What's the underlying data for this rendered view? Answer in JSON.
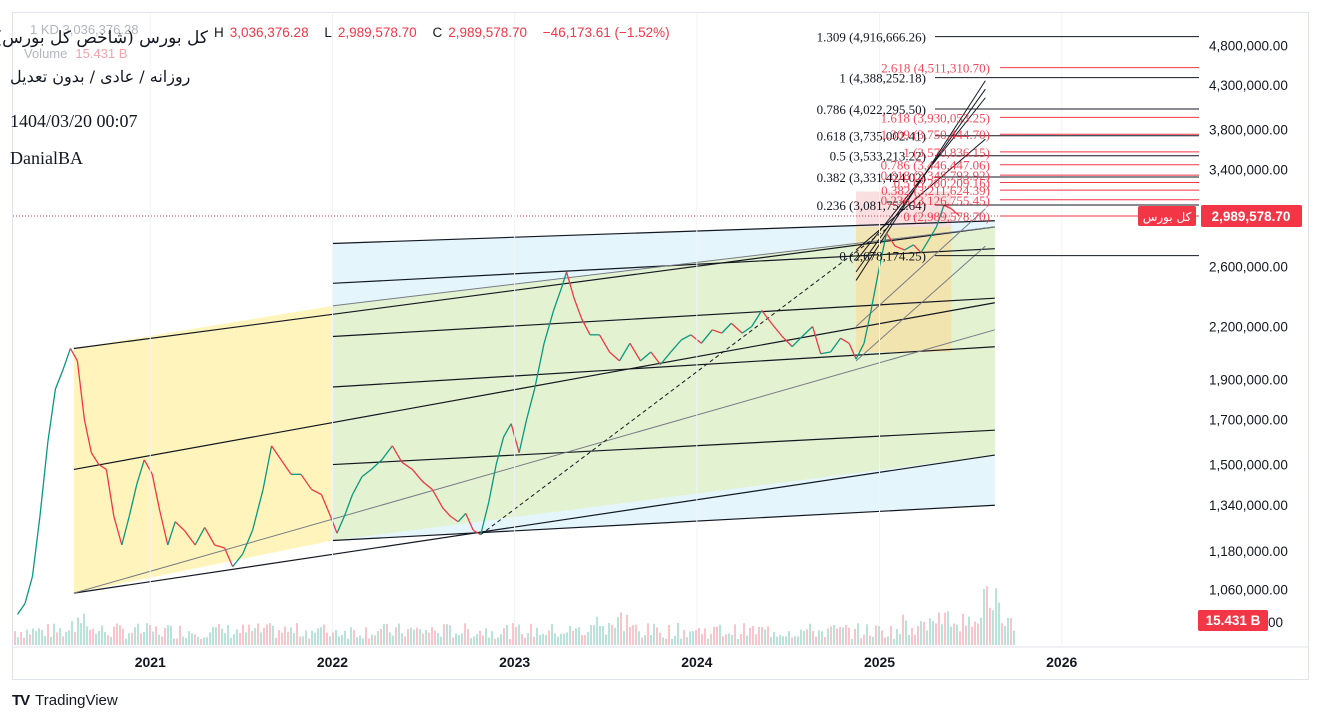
{
  "header": {
    "title": "کل بورس (شاخص کل بورس)",
    "faded_prefix": "1  KD  3,036,376.28",
    "ohlc": {
      "h_label": "H",
      "h": "3,036,376.28",
      "l_label": "L",
      "l": "2,989,578.70",
      "c_label": "C",
      "c": "2,989,578.70",
      "change": "−46,173.61 (−1.52%)"
    },
    "volume_label": "Volume",
    "volume_value": "15.431 B",
    "subtitle": "روزانه / عادی / بدون تعدیل",
    "date": "1404/03/20 00:07",
    "author": "DanialBA"
  },
  "brand": {
    "logo": "TV",
    "name": "TradingView"
  },
  "colors": {
    "up": "#089981",
    "down": "#f23645",
    "text": "#131722",
    "fib_black": "#131722",
    "fib_red": "#f23645",
    "zone_yellow": "#fff3b0",
    "zone_green": "#e3f1c8",
    "zone_cyan": "#dff4fb",
    "zone_pink": "#f8d9d9",
    "zone_gold": "#f5e2a8",
    "axis_text": "#131722"
  },
  "chart_data": {
    "type": "candlestick",
    "y_scale": "log",
    "ylim": [
      980000,
      5250000
    ],
    "x_range": [
      "2020-04-01",
      "2026-09-15"
    ],
    "price_axis_labels": [
      4800000,
      4300000,
      3800000,
      3400000,
      2600000,
      2200000,
      1900000,
      1700000,
      1500000,
      1340000,
      1180000,
      1060000
    ],
    "price_axis_texts": [
      "4,800,000.00",
      "4,300,000.00",
      "3,800,000.00",
      "3,400,000.00",
      "2,600,000.00",
      "2,200,000.00",
      "1,900,000.00",
      "1,700,000.00",
      "1,500,000.00",
      "1,340,000.00",
      "1,180,000.00",
      "1,060,000.00"
    ],
    "bottom_tick_text": "00",
    "time_axis_labels": [
      "2021",
      "2022",
      "2023",
      "2024",
      "2025",
      "2026"
    ],
    "time_axis_dates": [
      "2021-01-01",
      "2022-01-01",
      "2023-01-01",
      "2024-01-01",
      "2025-01-01",
      "2026-01-01"
    ],
    "last_price": 2989578.7,
    "last_price_text": "2,989,578.70",
    "last_price_label": "کل بورس",
    "volume_badge": "15.431 B",
    "price_path": [
      [
        "2020-04-10",
        990000
      ],
      [
        "2020-04-25",
        1020000
      ],
      [
        "2020-05-10",
        1100000
      ],
      [
        "2020-05-25",
        1300000
      ],
      [
        "2020-06-10",
        1600000
      ],
      [
        "2020-06-25",
        1850000
      ],
      [
        "2020-07-10",
        1950000
      ],
      [
        "2020-07-25",
        2070000
      ],
      [
        "2020-08-08",
        2000000
      ],
      [
        "2020-08-22",
        1700000
      ],
      [
        "2020-09-05",
        1550000
      ],
      [
        "2020-09-20",
        1500000
      ],
      [
        "2020-10-05",
        1480000
      ],
      [
        "2020-10-20",
        1300000
      ],
      [
        "2020-11-05",
        1200000
      ],
      [
        "2020-11-20",
        1300000
      ],
      [
        "2020-12-05",
        1420000
      ],
      [
        "2020-12-20",
        1520000
      ],
      [
        "2021-01-05",
        1460000
      ],
      [
        "2021-01-20",
        1320000
      ],
      [
        "2021-02-05",
        1200000
      ],
      [
        "2021-02-20",
        1280000
      ],
      [
        "2021-03-10",
        1250000
      ],
      [
        "2021-04-01",
        1200000
      ],
      [
        "2021-04-20",
        1260000
      ],
      [
        "2021-05-10",
        1200000
      ],
      [
        "2021-05-30",
        1190000
      ],
      [
        "2021-06-15",
        1130000
      ],
      [
        "2021-07-05",
        1170000
      ],
      [
        "2021-07-25",
        1250000
      ],
      [
        "2021-08-15",
        1400000
      ],
      [
        "2021-09-01",
        1580000
      ],
      [
        "2021-09-20",
        1520000
      ],
      [
        "2021-10-10",
        1460000
      ],
      [
        "2021-10-30",
        1460000
      ],
      [
        "2021-11-20",
        1400000
      ],
      [
        "2021-12-10",
        1380000
      ],
      [
        "2021-12-28",
        1300000
      ],
      [
        "2022-01-10",
        1240000
      ],
      [
        "2022-01-25",
        1300000
      ],
      [
        "2022-02-10",
        1380000
      ],
      [
        "2022-03-01",
        1450000
      ],
      [
        "2022-03-20",
        1480000
      ],
      [
        "2022-04-10",
        1520000
      ],
      [
        "2022-05-01",
        1580000
      ],
      [
        "2022-05-20",
        1510000
      ],
      [
        "2022-06-10",
        1480000
      ],
      [
        "2022-07-01",
        1430000
      ],
      [
        "2022-07-20",
        1400000
      ],
      [
        "2022-08-10",
        1330000
      ],
      [
        "2022-08-25",
        1300000
      ],
      [
        "2022-09-10",
        1280000
      ],
      [
        "2022-09-25",
        1310000
      ],
      [
        "2022-10-10",
        1250000
      ],
      [
        "2022-10-25",
        1235000
      ],
      [
        "2022-11-10",
        1350000
      ],
      [
        "2022-11-25",
        1500000
      ],
      [
        "2022-12-10",
        1620000
      ],
      [
        "2022-12-25",
        1680000
      ],
      [
        "2023-01-10",
        1550000
      ],
      [
        "2023-01-25",
        1700000
      ],
      [
        "2023-02-10",
        1850000
      ],
      [
        "2023-03-01",
        2100000
      ],
      [
        "2023-03-20",
        2300000
      ],
      [
        "2023-04-05",
        2450000
      ],
      [
        "2023-04-15",
        2560000
      ],
      [
        "2023-04-30",
        2380000
      ],
      [
        "2023-05-15",
        2250000
      ],
      [
        "2023-06-01",
        2150000
      ],
      [
        "2023-06-20",
        2150000
      ],
      [
        "2023-07-10",
        2050000
      ],
      [
        "2023-07-30",
        2000000
      ],
      [
        "2023-08-20",
        2100000
      ],
      [
        "2023-09-10",
        2000000
      ],
      [
        "2023-10-01",
        2050000
      ],
      [
        "2023-10-20",
        1980000
      ],
      [
        "2023-11-10",
        2050000
      ],
      [
        "2023-12-01",
        2120000
      ],
      [
        "2023-12-20",
        2150000
      ],
      [
        "2024-01-10",
        2100000
      ],
      [
        "2024-02-01",
        2180000
      ],
      [
        "2024-02-20",
        2160000
      ],
      [
        "2024-03-10",
        2220000
      ],
      [
        "2024-04-01",
        2160000
      ],
      [
        "2024-04-20",
        2200000
      ],
      [
        "2024-05-10",
        2300000
      ],
      [
        "2024-06-01",
        2210000
      ],
      [
        "2024-06-20",
        2140000
      ],
      [
        "2024-07-10",
        2080000
      ],
      [
        "2024-07-30",
        2140000
      ],
      [
        "2024-08-20",
        2200000
      ],
      [
        "2024-09-05",
        2040000
      ],
      [
        "2024-09-25",
        2050000
      ],
      [
        "2024-10-15",
        2130000
      ],
      [
        "2024-11-01",
        2100000
      ],
      [
        "2024-11-15",
        2010000
      ],
      [
        "2024-12-01",
        2100000
      ],
      [
        "2024-12-15",
        2300000
      ],
      [
        "2025-01-01",
        2600000
      ],
      [
        "2025-01-15",
        2850000
      ],
      [
        "2025-02-01",
        2750000
      ],
      [
        "2025-02-20",
        2720000
      ],
      [
        "2025-03-10",
        2760000
      ],
      [
        "2025-03-25",
        2700000
      ],
      [
        "2025-04-10",
        2800000
      ],
      [
        "2025-04-25",
        2900000
      ],
      [
        "2025-05-10",
        3080000
      ],
      [
        "2025-05-25",
        3050000
      ],
      [
        "2025-06-10",
        2989578.7
      ]
    ],
    "fib_retracement_black": [
      {
        "label": "1.309 (4,916,666.26)",
        "price": 4916666.26
      },
      {
        "label": "1 (4,388,252.18)",
        "price": 4388252.18
      },
      {
        "label": "0.786 (4,022,295.50)",
        "price": 4022295.5
      },
      {
        "label": "0.618 (3,735,002.41)",
        "price": 3735002.41
      },
      {
        "label": "0.5 (3,533,213.22)",
        "price": 3533213.22
      },
      {
        "label": "0.382 (3,331,424.02)",
        "price": 3331424.02
      },
      {
        "label": "0.236 (3,081,752.64)",
        "price": 3081752.64
      },
      {
        "label": "0 (2,678,174.25)",
        "price": 2678174.25
      }
    ],
    "fib_extension_red": [
      {
        "label": "2.618 (4,511,310.70)",
        "price": 4511310.7
      },
      {
        "label": "1.618 (3,930,053.25)",
        "price": 3930053.25
      },
      {
        "label": "1.309 (3,750,444.70)",
        "price": 3750444.7
      },
      {
        "label": "1 (3,570,836.15)",
        "price": 3570836.15
      },
      {
        "label": "0.786 (3,446,447.06)",
        "price": 3446447.06
      },
      {
        "label": "0.618 (3,348,793.92)",
        "price": 3348793.92
      },
      {
        "label": "0.5 (3,280,209.16)",
        "price": 3280209.16
      },
      {
        "label": "0.382 (3,211,624.39)",
        "price": 3211624.39
      },
      {
        "label": "0.236 (3,126,755.45)",
        "price": 3126755.45
      },
      {
        "label": "0 (2,989,578.70)",
        "price": 2989578.7
      }
    ],
    "channels": [
      {
        "color": "#131722",
        "lines": [
          [
            [
              "2020-08-01",
              2070000
            ],
            [
              "2025-08-20",
              2900000
            ]
          ],
          [
            [
              "2020-08-01",
              1480000
            ],
            [
              "2025-08-20",
              2350000
            ]
          ],
          [
            [
              "2020-08-01",
              1050000
            ],
            [
              "2025-08-20",
              1540000
            ]
          ]
        ]
      },
      {
        "color": "#131722",
        "lines": [
          [
            [
              "2022-01-01",
              2770000
            ],
            [
              "2025-08-20",
              2950000
            ]
          ],
          [
            [
              "2022-01-01",
              2480000
            ],
            [
              "2025-08-20",
              2730000
            ]
          ],
          [
            [
              "2022-01-01",
              2140000
            ],
            [
              "2025-08-20",
              2380000
            ]
          ],
          [
            [
              "2022-01-01",
              1860000
            ],
            [
              "2025-08-20",
              2080000
            ]
          ],
          [
            [
              "2022-01-01",
              1500000
            ],
            [
              "2025-08-20",
              1650000
            ]
          ],
          [
            [
              "2022-01-01",
              1215000
            ],
            [
              "2025-08-20",
              1340000
            ]
          ]
        ]
      }
    ],
    "zones": [
      {
        "color": "zone_yellow",
        "poly": [
          [
            "2020-08-01",
            2070000
          ],
          [
            "2022-01-01",
            2330000
          ],
          [
            "2022-01-01",
            1215000
          ],
          [
            "2020-08-01",
            1050000
          ]
        ]
      },
      {
        "color": "zone_cyan",
        "poly": [
          [
            "2022-01-01",
            2770000
          ],
          [
            "2025-08-20",
            2950000
          ],
          [
            "2025-08-20",
            1340000
          ],
          [
            "2022-01-01",
            1215000
          ]
        ]
      },
      {
        "color": "zone_green",
        "poly": [
          [
            "2022-01-01",
            2330000
          ],
          [
            "2025-08-20",
            2900000
          ],
          [
            "2025-08-20",
            1540000
          ],
          [
            "2022-01-01",
            1215000
          ]
        ]
      },
      {
        "color": "zone_pink",
        "poly": [
          [
            "2024-11-15",
            3200000
          ],
          [
            "2025-05-25",
            3200000
          ],
          [
            "2025-05-25",
            2900000
          ],
          [
            "2024-11-15",
            2900000
          ]
        ]
      },
      {
        "color": "zone_gold",
        "poly": [
          [
            "2024-11-15",
            2900000
          ],
          [
            "2025-05-25",
            2900000
          ],
          [
            "2025-05-25",
            2050000
          ],
          [
            "2024-11-15",
            2050000
          ]
        ]
      }
    ],
    "dashed_trend": [
      [
        "2022-10-25",
        1235000
      ],
      [
        "2025-01-20",
        2900000
      ]
    ]
  }
}
